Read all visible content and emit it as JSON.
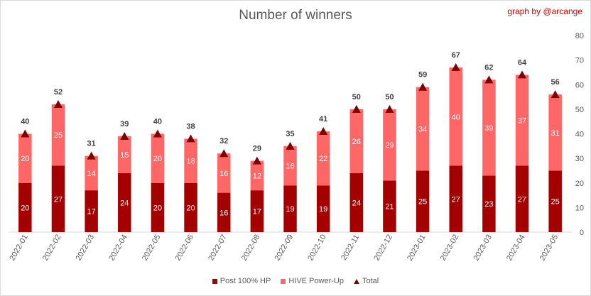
{
  "title": "Number of winners",
  "credit": "graph by @arcange",
  "chart_data": {
    "type": "bar",
    "stacked": true,
    "title": "Number of winners",
    "xlabel": "",
    "ylabel": "",
    "ylim": [
      0,
      80
    ],
    "yticks": [
      0,
      10,
      20,
      30,
      40,
      50,
      60,
      70,
      80
    ],
    "y_axis_position": "right",
    "grid": false,
    "legend_position": "bottom",
    "categories": [
      "2022-01",
      "2022-02",
      "2022-03",
      "2022-04",
      "2022-05",
      "2022-06",
      "2022-07",
      "2022-08",
      "2022-09",
      "2022-10",
      "2022-11",
      "2022-12",
      "2023-01",
      "2023-02",
      "2023-03",
      "2023-04",
      "2023-05"
    ],
    "series": [
      {
        "name": "Post 100% HP",
        "color": "#a50000",
        "values": [
          20,
          27,
          17,
          24,
          20,
          20,
          16,
          17,
          19,
          19,
          24,
          21,
          25,
          27,
          23,
          27,
          25
        ]
      },
      {
        "name": "HIVE Power-Up",
        "color": "#ff6666",
        "values": [
          20,
          25,
          14,
          15,
          20,
          18,
          16,
          12,
          16,
          22,
          26,
          29,
          34,
          40,
          39,
          37,
          31
        ]
      },
      {
        "name": "Total",
        "color": "#7f0000",
        "marker": "triangle",
        "values": [
          40,
          52,
          31,
          39,
          40,
          38,
          32,
          29,
          35,
          41,
          50,
          50,
          59,
          67,
          62,
          64,
          56
        ]
      }
    ]
  }
}
